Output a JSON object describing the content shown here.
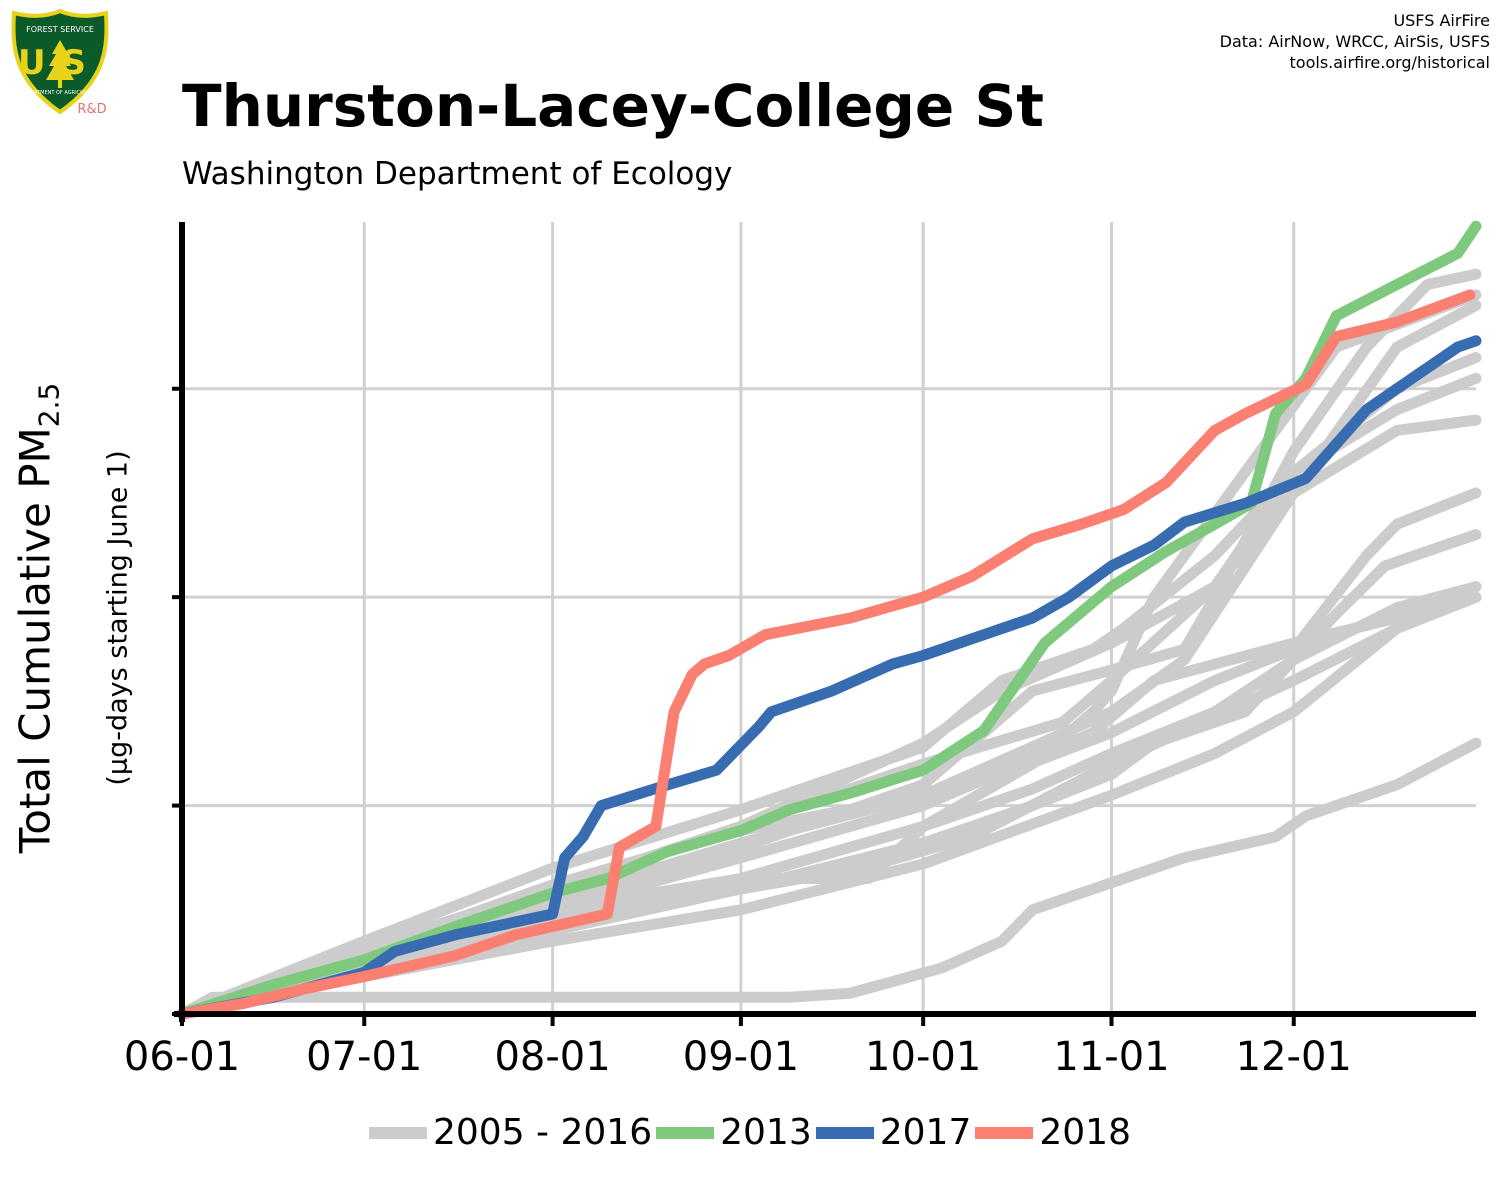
{
  "logo": {
    "top_text": "FOREST SERVICE",
    "main_text": "US",
    "bottom_text": "DEPARTMENT OF AGRICULTURE",
    "badge": "R&D",
    "icon": "forest-service-shield-icon"
  },
  "credits": [
    "USFS AirFire",
    "Data: AirNow, WRCC, AirSis, USFS",
    "tools.airfire.org/historical"
  ],
  "title": "Thurston-Lacey-College St",
  "subtitle": "Washington Department of Ecology",
  "ylabel": {
    "main": "Total Cumulative PM",
    "sub": "2.5",
    "secondary": "(μg-days starting June 1)"
  },
  "colors": {
    "historical": "#cccccc",
    "y2013": "#7fc97f",
    "y2017": "#386cb0",
    "y2018": "#fb8072",
    "grid": "#d0d0d0",
    "axis": "#000000"
  },
  "legend": [
    {
      "label": "2005 - 2016",
      "color": "#cccccc"
    },
    {
      "label": "2013",
      "color": "#7fc97f"
    },
    {
      "label": "2017",
      "color": "#386cb0"
    },
    {
      "label": "2018",
      "color": "#fb8072"
    }
  ],
  "chart_data": {
    "type": "line",
    "title": "Thurston-Lacey-College St",
    "xlabel": "",
    "ylabel": "Total Cumulative PM2.5 (μg-days starting June 1)",
    "x_unit": "days since June 1",
    "x_ticks": [
      {
        "label": "06-01",
        "day": 0
      },
      {
        "label": "07-01",
        "day": 30
      },
      {
        "label": "08-01",
        "day": 61
      },
      {
        "label": "09-01",
        "day": 92
      },
      {
        "label": "10-01",
        "day": 122
      },
      {
        "label": "11-01",
        "day": 153
      },
      {
        "label": "12-01",
        "day": 183
      }
    ],
    "xlim": [
      0,
      213
    ],
    "ylim": [
      0,
      3.8
    ],
    "y_ticks": [
      0,
      1,
      2,
      3
    ],
    "y_tick_labels": [
      "",
      "",
      "",
      ""
    ],
    "grid": true,
    "legend_position": "bottom",
    "series": [
      {
        "name": "2013",
        "color": "#7fc97f",
        "highlight": true,
        "x": [
          0,
          15,
          30,
          45,
          61,
          70,
          80,
          92,
          100,
          110,
          122,
          132,
          142,
          153,
          162,
          170,
          176,
          180,
          185,
          190,
          200,
          210,
          213
        ],
        "y": [
          0,
          0.14,
          0.26,
          0.42,
          0.58,
          0.65,
          0.78,
          0.88,
          0.98,
          1.06,
          1.17,
          1.36,
          1.78,
          2.05,
          2.22,
          2.35,
          2.45,
          2.88,
          3.05,
          3.35,
          3.5,
          3.65,
          3.78
        ]
      },
      {
        "name": "2017",
        "color": "#386cb0",
        "highlight": true,
        "x": [
          0,
          15,
          30,
          35,
          45,
          61,
          63,
          66,
          69,
          80,
          88,
          95,
          97,
          107,
          117,
          122,
          132,
          140,
          146,
          153,
          160,
          165,
          175,
          185,
          195,
          200,
          210,
          213
        ],
        "y": [
          0,
          0.08,
          0.2,
          0.3,
          0.38,
          0.48,
          0.75,
          0.85,
          1.0,
          1.1,
          1.17,
          1.38,
          1.45,
          1.55,
          1.68,
          1.72,
          1.82,
          1.9,
          2.0,
          2.15,
          2.25,
          2.36,
          2.45,
          2.57,
          2.9,
          3.0,
          3.2,
          3.23
        ]
      },
      {
        "name": "2018",
        "color": "#fb8072",
        "highlight": true,
        "x": [
          0,
          10,
          20,
          30,
          45,
          55,
          70,
          72,
          78,
          81,
          84,
          86,
          90,
          96,
          110,
          122,
          130,
          140,
          148,
          155,
          162,
          170,
          175,
          185,
          190,
          200,
          212
        ],
        "y": [
          0,
          0.05,
          0.12,
          0.18,
          0.28,
          0.38,
          0.48,
          0.8,
          0.9,
          1.45,
          1.63,
          1.68,
          1.72,
          1.82,
          1.9,
          2.0,
          2.1,
          2.28,
          2.35,
          2.42,
          2.55,
          2.8,
          2.88,
          3.02,
          3.25,
          3.32,
          3.45
        ]
      },
      {
        "name": "2005 - 2016",
        "color": "#cccccc",
        "highlight": false,
        "x": [
          0,
          5,
          100,
          110,
          125,
          135,
          140,
          150,
          165,
          180,
          185,
          200,
          213
        ],
        "y": [
          0,
          0.08,
          0.08,
          0.1,
          0.22,
          0.35,
          0.5,
          0.6,
          0.75,
          0.85,
          0.95,
          1.1,
          1.3
        ]
      },
      {
        "name": "2005 - 2016",
        "color": "#cccccc",
        "highlight": false,
        "x": [
          0,
          30,
          61,
          92,
          100,
          113,
          122,
          140,
          150,
          153,
          160,
          185,
          190,
          213
        ],
        "y": [
          0,
          0.25,
          0.5,
          0.65,
          0.65,
          0.65,
          0.9,
          1.2,
          1.45,
          1.55,
          2.0,
          3.0,
          3.2,
          3.45
        ]
      },
      {
        "name": "2005 - 2016",
        "color": "#cccccc",
        "highlight": false,
        "x": [
          0,
          30,
          61,
          92,
          122,
          140,
          153,
          165,
          170,
          183,
          195,
          205,
          213
        ],
        "y": [
          0,
          0.3,
          0.55,
          0.8,
          1.1,
          1.55,
          1.65,
          1.75,
          2.0,
          2.7,
          3.2,
          3.5,
          3.55
        ]
      },
      {
        "name": "2005 - 2016",
        "color": "#cccccc",
        "highlight": false,
        "x": [
          0,
          30,
          61,
          92,
          122,
          135,
          153,
          170,
          183,
          200,
          213
        ],
        "y": [
          0,
          0.28,
          0.6,
          0.9,
          1.3,
          1.55,
          1.78,
          2.05,
          2.5,
          3.2,
          3.4
        ]
      },
      {
        "name": "2005 - 2016",
        "color": "#cccccc",
        "highlight": false,
        "x": [
          0,
          30,
          61,
          92,
          122,
          135,
          150,
          155,
          170,
          183,
          200,
          213
        ],
        "y": [
          0,
          0.35,
          0.7,
          0.98,
          1.28,
          1.6,
          1.75,
          1.85,
          2.2,
          2.6,
          3.0,
          3.15
        ]
      },
      {
        "name": "2005 - 2016",
        "color": "#cccccc",
        "highlight": false,
        "x": [
          0,
          30,
          61,
          92,
          122,
          145,
          153,
          170,
          183,
          200,
          213
        ],
        "y": [
          0,
          0.32,
          0.6,
          0.9,
          1.2,
          1.4,
          1.6,
          2.05,
          2.6,
          2.9,
          3.05
        ]
      },
      {
        "name": "2005 - 2016",
        "color": "#cccccc",
        "highlight": false,
        "x": [
          0,
          30,
          61,
          92,
          122,
          153,
          165,
          183,
          200,
          213
        ],
        "y": [
          0,
          0.3,
          0.62,
          0.88,
          1.05,
          1.45,
          1.7,
          2.5,
          2.8,
          2.85
        ]
      },
      {
        "name": "2005 - 2016",
        "color": "#cccccc",
        "highlight": false,
        "x": [
          0,
          30,
          61,
          92,
          122,
          135,
          153,
          170,
          183,
          195,
          200,
          213
        ],
        "y": [
          0,
          0.28,
          0.55,
          0.82,
          1.05,
          1.15,
          1.35,
          1.6,
          1.75,
          2.2,
          2.35,
          2.5
        ]
      },
      {
        "name": "2005 - 2016",
        "color": "#cccccc",
        "highlight": false,
        "x": [
          0,
          30,
          61,
          92,
          122,
          140,
          153,
          160,
          175,
          190,
          198,
          213
        ],
        "y": [
          0,
          0.25,
          0.42,
          0.6,
          0.82,
          1.0,
          1.15,
          1.3,
          1.45,
          1.92,
          2.15,
          2.3
        ]
      },
      {
        "name": "2005 - 2016",
        "color": "#cccccc",
        "highlight": false,
        "x": [
          0,
          30,
          61,
          92,
          122,
          140,
          153,
          170,
          183,
          200,
          213
        ],
        "y": [
          0,
          0.22,
          0.45,
          0.65,
          0.9,
          1.08,
          1.25,
          1.45,
          1.7,
          1.95,
          2.05
        ]
      },
      {
        "name": "2005 - 2016",
        "color": "#cccccc",
        "highlight": false,
        "x": [
          0,
          30,
          61,
          92,
          122,
          130,
          150,
          160,
          183,
          200,
          213
        ],
        "y": [
          0,
          0.25,
          0.5,
          0.75,
          1.0,
          1.1,
          1.35,
          1.6,
          1.78,
          1.9,
          2.0
        ]
      },
      {
        "name": "2005 - 2016",
        "color": "#cccccc",
        "highlight": false,
        "x": [
          0,
          30,
          61,
          92,
          112,
          130,
          153,
          183,
          200,
          213
        ],
        "y": [
          0,
          0.2,
          0.4,
          0.6,
          0.7,
          0.85,
          1.2,
          1.6,
          1.85,
          2.0
        ]
      },
      {
        "name": "2005 - 2016",
        "color": "#cccccc",
        "highlight": false,
        "x": [
          0,
          30,
          61,
          92,
          122,
          153,
          170,
          183,
          200,
          213
        ],
        "y": [
          0,
          0.18,
          0.35,
          0.5,
          0.72,
          1.05,
          1.25,
          1.45,
          1.85,
          2.05
        ]
      }
    ]
  }
}
